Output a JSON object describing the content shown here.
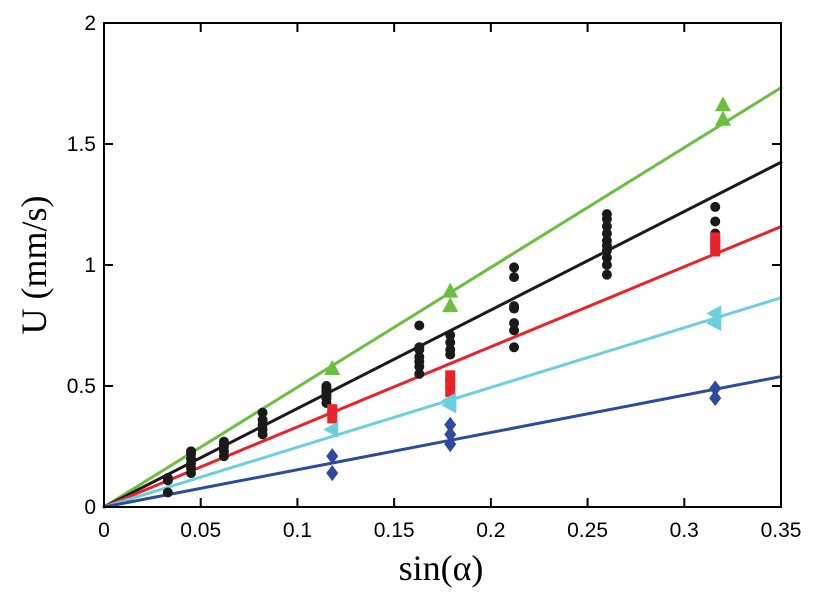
{
  "chart_data": {
    "type": "scatter",
    "title": "",
    "xlabel": "sin(α)",
    "ylabel": "U (mm/s)",
    "xlim": [
      0,
      0.35
    ],
    "ylim": [
      0,
      2
    ],
    "grid": false,
    "x_ticks": [
      0,
      0.05,
      0.1,
      0.15,
      0.2,
      0.25,
      0.3,
      0.35
    ],
    "x_tick_labels": [
      "0",
      "0.05",
      "0.1",
      "0.15",
      "0.2",
      "0.25",
      "0.3",
      "0.35"
    ],
    "y_ticks": [
      0,
      0.5,
      1,
      1.5,
      2
    ],
    "y_tick_labels": [
      "0",
      "0.5",
      "1",
      "1.5",
      "2"
    ],
    "fit_lines": [
      {
        "name": "green fit",
        "color": "#6abf3c",
        "slope": 4.95
      },
      {
        "name": "black fit",
        "color": "#1a1a1a",
        "slope": 4.07
      },
      {
        "name": "red fit",
        "color": "#e8232a",
        "slope": 3.31
      },
      {
        "name": "cyan fit",
        "color": "#6ccfdf",
        "slope": 2.47
      },
      {
        "name": "blue fit",
        "color": "#2c4a9e",
        "slope": 1.54
      }
    ],
    "series": [
      {
        "name": "green triangles",
        "marker": "triangle-up",
        "color": "#6abf3c",
        "x": [
          0.118,
          0.179,
          0.179,
          0.32,
          0.32
        ],
        "y": [
          0.57,
          0.89,
          0.83,
          1.66,
          1.6
        ]
      },
      {
        "name": "black circles",
        "marker": "circle",
        "color": "#1a1a1a",
        "x": [
          0.033,
          0.033,
          0.033,
          0.045,
          0.045,
          0.045,
          0.045,
          0.045,
          0.045,
          0.062,
          0.062,
          0.062,
          0.062,
          0.062,
          0.082,
          0.082,
          0.082,
          0.082,
          0.082,
          0.115,
          0.115,
          0.115,
          0.115,
          0.115,
          0.115,
          0.115,
          0.163,
          0.163,
          0.163,
          0.163,
          0.163,
          0.163,
          0.163,
          0.179,
          0.179,
          0.179,
          0.179,
          0.212,
          0.212,
          0.212,
          0.212,
          0.212,
          0.212,
          0.212,
          0.26,
          0.26,
          0.26,
          0.26,
          0.26,
          0.26,
          0.26,
          0.26,
          0.26,
          0.26,
          0.316,
          0.316,
          0.316
        ],
        "y": [
          0.06,
          0.11,
          0.12,
          0.14,
          0.16,
          0.18,
          0.2,
          0.22,
          0.23,
          0.21,
          0.23,
          0.25,
          0.26,
          0.27,
          0.3,
          0.32,
          0.34,
          0.36,
          0.39,
          0.43,
          0.45,
          0.46,
          0.47,
          0.48,
          0.49,
          0.5,
          0.55,
          0.58,
          0.6,
          0.62,
          0.65,
          0.66,
          0.75,
          0.63,
          0.65,
          0.68,
          0.71,
          0.66,
          0.73,
          0.76,
          0.82,
          0.83,
          0.95,
          0.99,
          0.96,
          1.0,
          1.03,
          1.06,
          1.08,
          1.1,
          1.13,
          1.16,
          1.19,
          1.21,
          1.13,
          1.18,
          1.24
        ]
      },
      {
        "name": "red squares",
        "marker": "square",
        "color": "#e8232a",
        "x": [
          0.118,
          0.118,
          0.179,
          0.179,
          0.179,
          0.316,
          0.316,
          0.316
        ],
        "y": [
          0.37,
          0.4,
          0.48,
          0.51,
          0.54,
          1.06,
          1.09,
          1.11
        ]
      },
      {
        "name": "cyan triangles",
        "marker": "triangle-left",
        "color": "#6ccfdf",
        "x": [
          0.118,
          0.179,
          0.179,
          0.316,
          0.316
        ],
        "y": [
          0.32,
          0.42,
          0.44,
          0.76,
          0.8
        ]
      },
      {
        "name": "blue diamonds",
        "marker": "diamond",
        "color": "#2c4a9e",
        "x": [
          0.118,
          0.118,
          0.179,
          0.179,
          0.179,
          0.316,
          0.316
        ],
        "y": [
          0.14,
          0.21,
          0.26,
          0.3,
          0.34,
          0.45,
          0.49
        ]
      }
    ]
  }
}
